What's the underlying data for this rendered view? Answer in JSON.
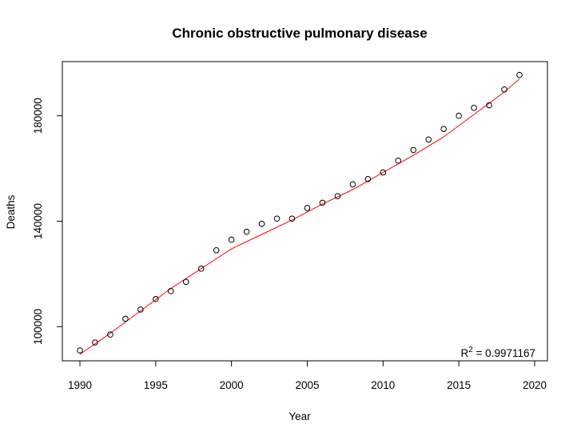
{
  "chart_data": {
    "type": "scatter",
    "title": "Chronic obstructive pulmonary disease",
    "xlabel": "Year",
    "ylabel": "Deaths",
    "xlim": [
      1990,
      2019
    ],
    "ylim": [
      91000,
      196000
    ],
    "x_ticks": [
      1990,
      1995,
      2000,
      2005,
      2010,
      2015,
      2020
    ],
    "y_ticks": [
      100000,
      140000,
      180000
    ],
    "grid": false,
    "series": [
      {
        "points": [
          [
            1990,
            91000
          ],
          [
            1991,
            94000
          ],
          [
            1992,
            97000
          ],
          [
            1993,
            103000
          ],
          [
            1994,
            106500
          ],
          [
            1995,
            110500
          ],
          [
            1996,
            113500
          ],
          [
            1997,
            117000
          ],
          [
            1998,
            122000
          ],
          [
            1999,
            129000
          ],
          [
            2000,
            133000
          ],
          [
            2001,
            136000
          ],
          [
            2002,
            139000
          ],
          [
            2003,
            141000
          ],
          [
            2004,
            141000
          ],
          [
            2005,
            145000
          ],
          [
            2006,
            147000
          ],
          [
            2007,
            149500
          ],
          [
            2008,
            154000
          ],
          [
            2009,
            156000
          ],
          [
            2010,
            158500
          ],
          [
            2011,
            163000
          ],
          [
            2012,
            167000
          ],
          [
            2013,
            171000
          ],
          [
            2014,
            175000
          ],
          [
            2015,
            180000
          ],
          [
            2016,
            183000
          ],
          [
            2017,
            184000
          ],
          [
            2018,
            190000
          ],
          [
            2019,
            195500
          ]
        ],
        "marker": "open-circle",
        "color": "#000000"
      }
    ],
    "fit_line": {
      "color": "#ff0000",
      "points": [
        [
          1990,
          89500
        ],
        [
          1992,
          97500
        ],
        [
          1994,
          106000
        ],
        [
          1996,
          114500
        ],
        [
          1998,
          122000
        ],
        [
          2000,
          129500
        ],
        [
          2002,
          135000
        ],
        [
          2004,
          140500
        ],
        [
          2006,
          146500
        ],
        [
          2008,
          152000
        ],
        [
          2010,
          158500
        ],
        [
          2012,
          165000
        ],
        [
          2014,
          172000
        ],
        [
          2016,
          180500
        ],
        [
          2018,
          189000
        ],
        [
          2019,
          194000
        ]
      ]
    },
    "annotation": {
      "r2_label": "R",
      "r2_superscript": "2",
      "r2_value_text": " = 0.9971167"
    }
  }
}
